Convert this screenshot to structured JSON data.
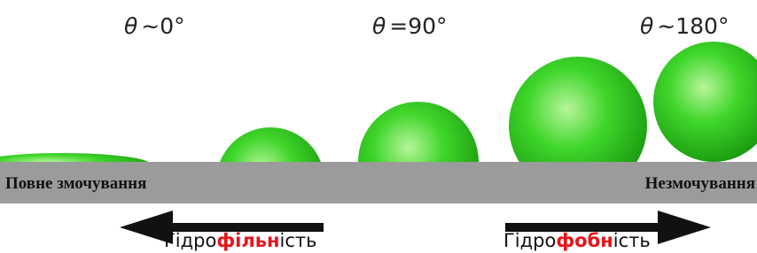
{
  "angles": [
    {
      "symbol": "θ",
      "text": "~0°"
    },
    {
      "symbol": "θ",
      "text": "=90°"
    },
    {
      "symbol": "θ",
      "text": "~180°"
    }
  ],
  "surface": {
    "left": "Повне змочування",
    "right": "Незмочування"
  },
  "arrows": {
    "left": {
      "prefix": "Гідро",
      "highlight": "фільн",
      "suffix": "ість"
    },
    "right": {
      "prefix": "Гідро",
      "highlight": "фобн",
      "suffix": "ість"
    }
  }
}
